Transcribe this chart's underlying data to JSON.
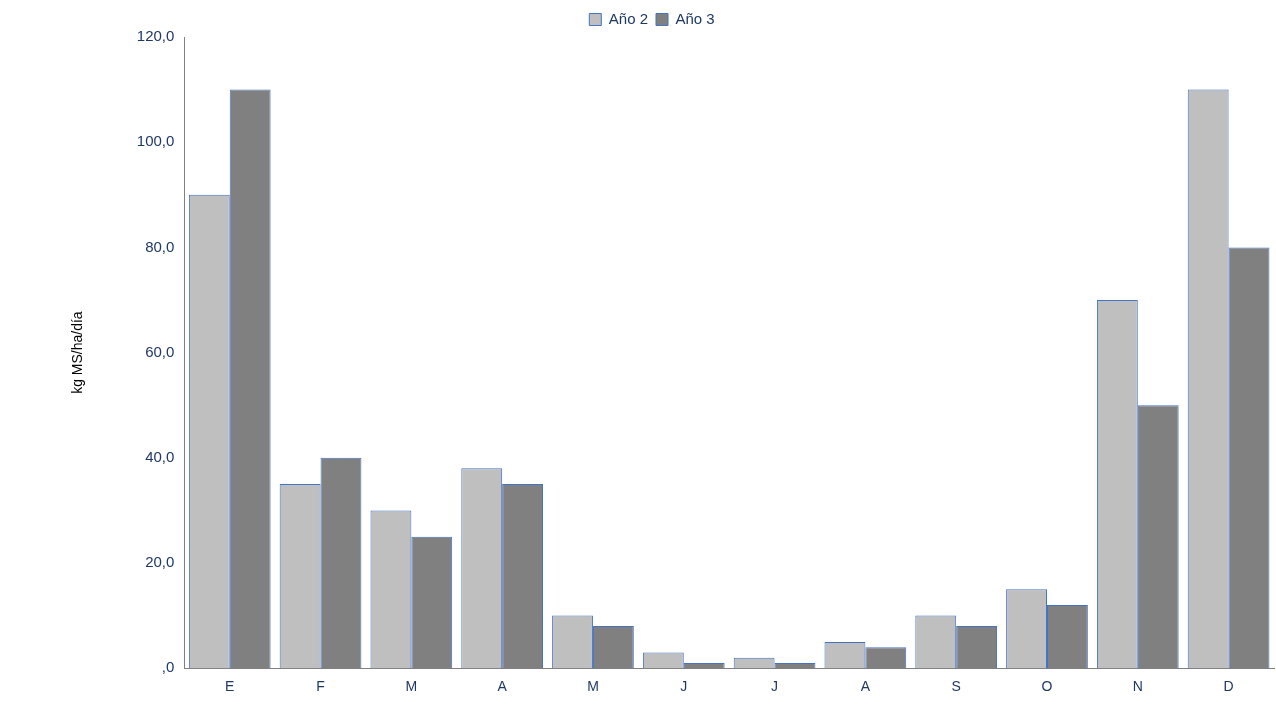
{
  "chart_data": {
    "type": "bar",
    "ylabel": "kg MS/ha/día",
    "categories": [
      "E",
      "F",
      "M",
      "A",
      "M",
      "J",
      "J",
      "A",
      "S",
      "O",
      "N",
      "D"
    ],
    "series": [
      {
        "name": "Año 2",
        "color": "#bfbfbf",
        "values": [
          90,
          35,
          30,
          38,
          10,
          3,
          2,
          5,
          10,
          15,
          70,
          110
        ]
      },
      {
        "name": "Año 3",
        "color": "#808080",
        "values": [
          110,
          40,
          25,
          35,
          8,
          1,
          1,
          4,
          8,
          12,
          50,
          80
        ]
      }
    ],
    "ylim": [
      0,
      120
    ],
    "yticks": [
      {
        "value": 0,
        "label": ",0"
      },
      {
        "value": 20,
        "label": "20,0"
      },
      {
        "value": 40,
        "label": "40,0"
      },
      {
        "value": 60,
        "label": "60,0"
      },
      {
        "value": 80,
        "label": "80,0"
      },
      {
        "value": 100,
        "label": "100,0"
      },
      {
        "value": 120,
        "label": "120,0"
      }
    ],
    "grid": false,
    "legend": "top"
  }
}
